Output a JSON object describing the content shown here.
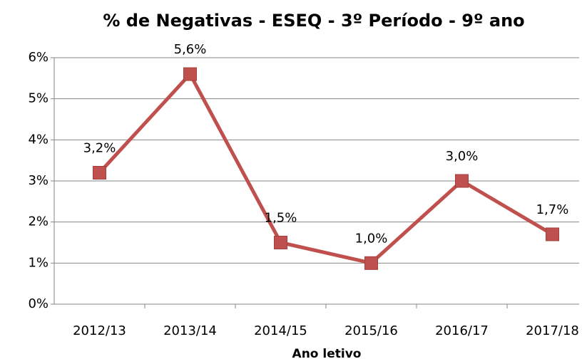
{
  "chart_data": {
    "type": "line",
    "title": "% de Negativas - ESEQ - 3º Período - 9º ano",
    "x_label": "Ano letivo",
    "categories": [
      "2012/13",
      "2013/14",
      "2014/15",
      "2015/16",
      "2016/17",
      "2017/18"
    ],
    "series": [
      {
        "name": "% de Negativas",
        "color": "#c0504d",
        "values": [
          3.2,
          5.6,
          1.5,
          1.0,
          3.0,
          1.7
        ],
        "value_labels": [
          "3,2%",
          "5,6%",
          "1,5%",
          "1,0%",
          "3,0%",
          "1,7%"
        ]
      }
    ],
    "ylim": [
      0,
      6
    ],
    "yticks": [
      {
        "value": 0,
        "label": "0%"
      },
      {
        "value": 1,
        "label": "1%"
      },
      {
        "value": 2,
        "label": "2%"
      },
      {
        "value": 3,
        "label": "3%"
      },
      {
        "value": 4,
        "label": "4%"
      },
      {
        "value": 5,
        "label": "5%"
      },
      {
        "value": 6,
        "label": "6%"
      }
    ],
    "grid": true
  }
}
